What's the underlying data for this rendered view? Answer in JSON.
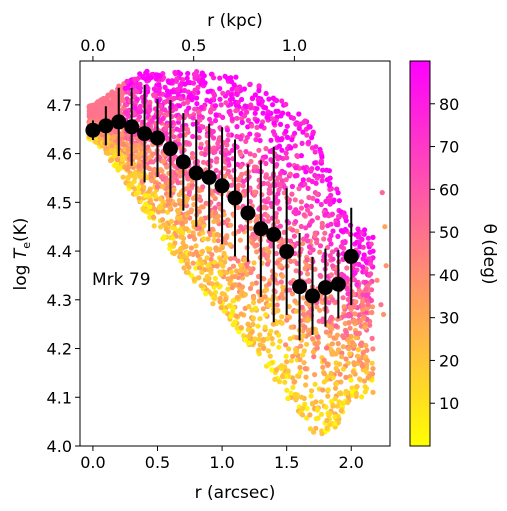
{
  "chart_data": {
    "type": "scatter",
    "annotation": "Mrk 79",
    "xlabel": "r  (arcsec)",
    "xlabel_top": "r  (kpc)",
    "ylabel": "log T_e(K)",
    "colorbar_label": "θ (deg)",
    "xlim": [
      -0.1,
      2.3
    ],
    "ylim": [
      4.0,
      4.79
    ],
    "xticks": [
      "0.0",
      "0.5",
      "1.0",
      "1.5",
      "2.0"
    ],
    "xticks_top": [
      "0.0",
      "0.5",
      "1.0"
    ],
    "xticks_top_positions_arcsec": [
      0.0,
      0.78,
      1.56
    ],
    "yticks": [
      "4.0",
      "4.1",
      "4.2",
      "4.3",
      "4.4",
      "4.5",
      "4.6",
      "4.7"
    ],
    "colorbar_range": [
      0,
      90
    ],
    "colorbar_ticks": [
      "10",
      "20",
      "30",
      "40",
      "50",
      "60",
      "70",
      "80"
    ],
    "colormap": [
      "#ffff00",
      "#ff00ff"
    ],
    "grid": false,
    "binned_series": {
      "marker_color": "#000000",
      "x": [
        0.0,
        0.1,
        0.2,
        0.3,
        0.4,
        0.5,
        0.6,
        0.7,
        0.8,
        0.9,
        1.0,
        1.1,
        1.2,
        1.3,
        1.4,
        1.5,
        1.6,
        1.7,
        1.8,
        1.9,
        2.0
      ],
      "y": [
        4.648,
        4.657,
        4.665,
        4.655,
        4.641,
        4.632,
        4.61,
        4.583,
        4.56,
        4.551,
        4.534,
        4.509,
        4.478,
        4.446,
        4.434,
        4.399,
        4.327,
        4.308,
        4.325,
        4.332,
        4.389
      ],
      "yerr": [
        0.02,
        0.04,
        0.07,
        0.08,
        0.1,
        0.08,
        0.1,
        0.1,
        0.11,
        0.11,
        0.12,
        0.12,
        0.1,
        0.14,
        0.18,
        0.13,
        0.11,
        0.08,
        0.08,
        0.07,
        0.1
      ]
    },
    "scatter_envelope": {
      "description_of_points": "individual spaxels colored by theta",
      "x": [
        0.0,
        0.1,
        0.2,
        0.3,
        0.4,
        0.5,
        0.6,
        0.7,
        0.8,
        0.9,
        1.0,
        1.1,
        1.2,
        1.3,
        1.4,
        1.5,
        1.6,
        1.7,
        1.8,
        1.9,
        2.0
      ],
      "y_upper": [
        4.7,
        4.72,
        4.74,
        4.76,
        4.77,
        4.77,
        4.77,
        4.77,
        4.77,
        4.77,
        4.76,
        4.76,
        4.75,
        4.74,
        4.72,
        4.71,
        4.69,
        4.65,
        4.59,
        4.52,
        4.45
      ],
      "y_lower": [
        4.63,
        4.6,
        4.56,
        4.52,
        4.48,
        4.44,
        4.4,
        4.36,
        4.33,
        4.3,
        4.27,
        4.24,
        4.21,
        4.18,
        4.14,
        4.1,
        4.06,
        4.02,
        4.02,
        4.04,
        4.1
      ]
    }
  }
}
